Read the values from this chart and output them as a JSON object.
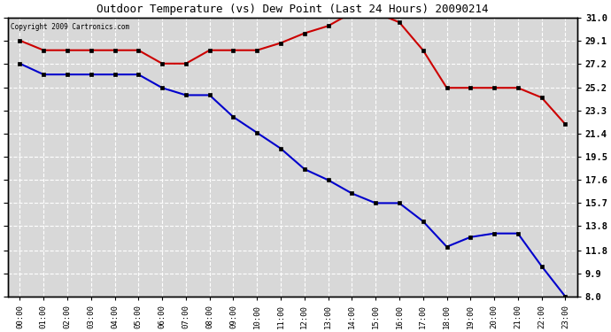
{
  "title": "Outdoor Temperature (vs) Dew Point (Last 24 Hours) 20090214",
  "copyright_text": "Copyright 2009 Cartronics.com",
  "x_labels": [
    "00:00",
    "01:00",
    "02:00",
    "03:00",
    "04:00",
    "05:00",
    "06:00",
    "07:00",
    "08:00",
    "09:00",
    "10:00",
    "11:00",
    "12:00",
    "13:00",
    "14:00",
    "15:00",
    "16:00",
    "17:00",
    "18:00",
    "19:00",
    "20:00",
    "21:00",
    "22:00",
    "23:00"
  ],
  "temp_data": [
    29.1,
    28.3,
    28.3,
    28.3,
    28.3,
    28.3,
    27.2,
    27.2,
    28.3,
    28.3,
    28.3,
    28.9,
    29.7,
    30.3,
    31.4,
    31.4,
    30.6,
    28.3,
    25.2,
    25.2,
    25.2,
    25.2,
    24.4,
    22.2
  ],
  "dew_data": [
    27.2,
    26.3,
    26.3,
    26.3,
    26.3,
    26.3,
    25.2,
    24.6,
    24.6,
    22.8,
    21.5,
    20.2,
    18.5,
    17.6,
    16.5,
    15.7,
    15.7,
    14.2,
    12.1,
    12.9,
    13.2,
    13.2,
    10.5,
    8.0
  ],
  "temp_color": "#cc0000",
  "dew_color": "#0000cc",
  "bg_color": "#ffffff",
  "plot_bg_color": "#d8d8d8",
  "grid_color": "#ffffff",
  "y_ticks": [
    8.0,
    9.9,
    11.8,
    13.8,
    15.7,
    17.6,
    19.5,
    21.4,
    23.3,
    25.2,
    27.2,
    29.1,
    31.0
  ],
  "y_min": 8.0,
  "y_max": 31.0,
  "marker_size": 3,
  "linewidth": 1.5,
  "title_fontsize": 9
}
